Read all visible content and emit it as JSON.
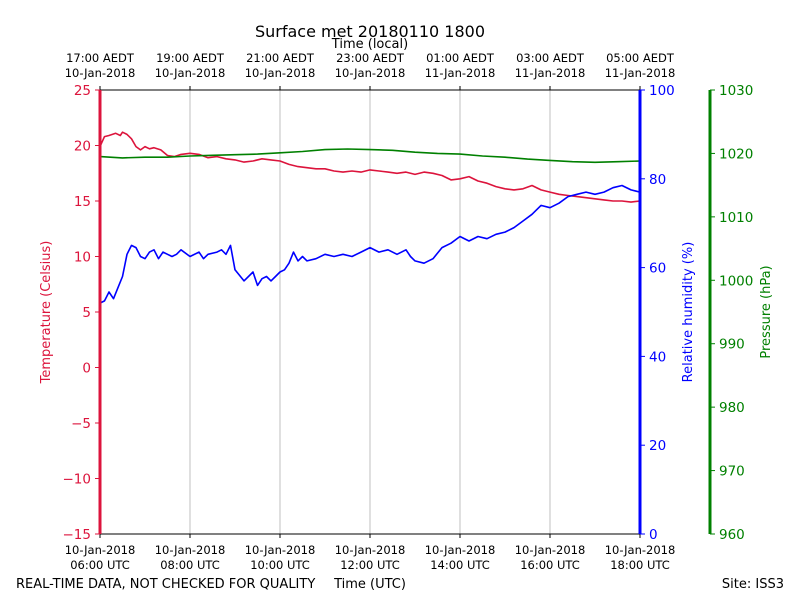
{
  "chart_data": {
    "type": "line",
    "title": "Surface met 20180110 1800",
    "top_axis_label": "Time (local)",
    "xlabel": "Time (UTC)",
    "footer_left": "REAL-TIME DATA, NOT CHECKED FOR QUALITY",
    "footer_right": "Site: ISS3",
    "x_range_hours_utc": [
      6,
      18
    ],
    "x_ticks_utc": [
      {
        "hour": 6,
        "line1": "10-Jan-2018",
        "line2": "06:00 UTC"
      },
      {
        "hour": 8,
        "line1": "10-Jan-2018",
        "line2": "08:00 UTC"
      },
      {
        "hour": 10,
        "line1": "10-Jan-2018",
        "line2": "10:00 UTC"
      },
      {
        "hour": 12,
        "line1": "10-Jan-2018",
        "line2": "12:00 UTC"
      },
      {
        "hour": 14,
        "line1": "10-Jan-2018",
        "line2": "14:00 UTC"
      },
      {
        "hour": 16,
        "line1": "10-Jan-2018",
        "line2": "16:00 UTC"
      },
      {
        "hour": 18,
        "line1": "10-Jan-2018",
        "line2": "18:00 UTC"
      }
    ],
    "x_ticks_local": [
      {
        "hour": 6,
        "line1": "17:00 AEDT",
        "line2": "10-Jan-2018"
      },
      {
        "hour": 8,
        "line1": "19:00 AEDT",
        "line2": "10-Jan-2018"
      },
      {
        "hour": 10,
        "line1": "21:00 AEDT",
        "line2": "10-Jan-2018"
      },
      {
        "hour": 12,
        "line1": "23:00 AEDT",
        "line2": "10-Jan-2018"
      },
      {
        "hour": 14,
        "line1": "01:00 AEDT",
        "line2": "11-Jan-2018"
      },
      {
        "hour": 16,
        "line1": "03:00 AEDT",
        "line2": "11-Jan-2018"
      },
      {
        "hour": 18,
        "line1": "05:00 AEDT",
        "line2": "11-Jan-2018"
      }
    ],
    "axes": {
      "temperature": {
        "label": "Temperature (Celsius)",
        "ylim": [
          -15,
          25
        ],
        "ticks": [
          -15,
          -10,
          -5,
          0,
          5,
          10,
          15,
          20,
          25
        ],
        "tick_labels": [
          "−15",
          "−10",
          "−5",
          "0",
          "5",
          "10",
          "15",
          "20",
          "25"
        ],
        "color": "#dc143c"
      },
      "humidity": {
        "label": "Relative humidity (%)",
        "ylim": [
          0,
          100
        ],
        "ticks": [
          0,
          20,
          40,
          60,
          80,
          100
        ],
        "tick_labels": [
          "0",
          "20",
          "40",
          "60",
          "80",
          "100"
        ],
        "color": "#0000ff"
      },
      "pressure": {
        "label": "Pressure (hPa)",
        "ylim": [
          960,
          1030
        ],
        "ticks": [
          960,
          970,
          980,
          990,
          1000,
          1010,
          1020,
          1030
        ],
        "tick_labels": [
          "960",
          "970",
          "980",
          "990",
          "1000",
          "1010",
          "1020",
          "1030"
        ],
        "color": "#008000"
      }
    },
    "series": [
      {
        "name": "Temperature",
        "axis": "temperature",
        "color": "#dc143c",
        "x": [
          6.0,
          6.1,
          6.2,
          6.35,
          6.45,
          6.5,
          6.6,
          6.7,
          6.8,
          6.9,
          7.0,
          7.1,
          7.2,
          7.35,
          7.5,
          7.65,
          7.8,
          8.0,
          8.2,
          8.4,
          8.6,
          8.8,
          9.0,
          9.2,
          9.4,
          9.6,
          9.8,
          10.0,
          10.2,
          10.4,
          10.6,
          10.8,
          11.0,
          11.2,
          11.4,
          11.6,
          11.8,
          12.0,
          12.2,
          12.4,
          12.6,
          12.8,
          13.0,
          13.2,
          13.4,
          13.6,
          13.8,
          14.0,
          14.2,
          14.4,
          14.6,
          14.8,
          15.0,
          15.2,
          15.4,
          15.6,
          15.8,
          16.0,
          16.2,
          16.4,
          16.6,
          16.8,
          17.0,
          17.2,
          17.4,
          17.6,
          17.8,
          18.0
        ],
        "values": [
          19.9,
          20.8,
          20.9,
          21.1,
          20.9,
          21.2,
          21.0,
          20.6,
          19.9,
          19.6,
          19.9,
          19.7,
          19.8,
          19.6,
          19.1,
          19.0,
          19.2,
          19.3,
          19.2,
          18.9,
          19.0,
          18.8,
          18.7,
          18.5,
          18.6,
          18.8,
          18.7,
          18.6,
          18.3,
          18.1,
          18.0,
          17.9,
          17.9,
          17.7,
          17.6,
          17.7,
          17.6,
          17.8,
          17.7,
          17.6,
          17.5,
          17.6,
          17.4,
          17.6,
          17.5,
          17.3,
          16.9,
          17.0,
          17.2,
          16.8,
          16.6,
          16.3,
          16.1,
          16.0,
          16.1,
          16.4,
          16.0,
          15.8,
          15.6,
          15.5,
          15.4,
          15.3,
          15.2,
          15.1,
          15.0,
          15.0,
          14.9,
          15.0
        ]
      },
      {
        "name": "Relative humidity",
        "axis": "humidity",
        "color": "#0000ff",
        "x": [
          6.0,
          6.1,
          6.2,
          6.3,
          6.4,
          6.5,
          6.6,
          6.7,
          6.8,
          6.9,
          7.0,
          7.1,
          7.2,
          7.3,
          7.4,
          7.5,
          7.6,
          7.7,
          7.8,
          8.0,
          8.2,
          8.3,
          8.4,
          8.6,
          8.7,
          8.8,
          8.9,
          9.0,
          9.2,
          9.4,
          9.5,
          9.6,
          9.7,
          9.8,
          9.9,
          10.0,
          10.1,
          10.2,
          10.3,
          10.4,
          10.5,
          10.6,
          10.8,
          11.0,
          11.2,
          11.4,
          11.6,
          11.8,
          12.0,
          12.2,
          12.4,
          12.6,
          12.8,
          12.9,
          13.0,
          13.2,
          13.4,
          13.6,
          13.8,
          14.0,
          14.2,
          14.4,
          14.6,
          14.8,
          15.0,
          15.2,
          15.4,
          15.6,
          15.8,
          16.0,
          16.2,
          16.4,
          16.6,
          16.8,
          17.0,
          17.2,
          17.4,
          17.6,
          17.8,
          18.0
        ],
        "values": [
          52.0,
          52.5,
          54.5,
          53.0,
          55.5,
          58.0,
          63.0,
          65.0,
          64.5,
          62.5,
          62.0,
          63.5,
          64.0,
          62.0,
          63.5,
          63.0,
          62.5,
          63.0,
          64.0,
          62.5,
          63.5,
          62.0,
          63.0,
          63.5,
          64.0,
          63.0,
          65.0,
          59.5,
          57.0,
          59.0,
          56.0,
          57.5,
          58.0,
          57.0,
          58.0,
          59.0,
          59.5,
          61.0,
          63.5,
          61.5,
          62.5,
          61.5,
          62.0,
          63.0,
          62.5,
          63.0,
          62.5,
          63.5,
          64.5,
          63.5,
          64.0,
          63.0,
          64.0,
          62.5,
          61.5,
          61.0,
          62.0,
          64.5,
          65.5,
          67.0,
          66.0,
          67.0,
          66.5,
          67.5,
          68.0,
          69.0,
          70.5,
          72.0,
          74.0,
          73.5,
          74.5,
          76.0,
          76.5,
          77.0,
          76.5,
          77.0,
          78.0,
          78.5,
          77.5,
          77.0
        ]
      },
      {
        "name": "Pressure",
        "axis": "pressure",
        "color": "#008000",
        "x": [
          6.0,
          6.5,
          7.0,
          7.5,
          8.0,
          8.5,
          9.0,
          9.5,
          10.0,
          10.5,
          11.0,
          11.5,
          12.0,
          12.5,
          13.0,
          13.5,
          14.0,
          14.5,
          15.0,
          15.5,
          16.0,
          16.5,
          17.0,
          17.5,
          18.0
        ],
        "values": [
          1019.5,
          1019.3,
          1019.4,
          1019.4,
          1019.6,
          1019.7,
          1019.8,
          1019.9,
          1020.1,
          1020.3,
          1020.6,
          1020.7,
          1020.6,
          1020.5,
          1020.2,
          1020.0,
          1019.9,
          1019.6,
          1019.4,
          1019.1,
          1018.9,
          1018.7,
          1018.6,
          1018.7,
          1018.8
        ]
      }
    ]
  }
}
